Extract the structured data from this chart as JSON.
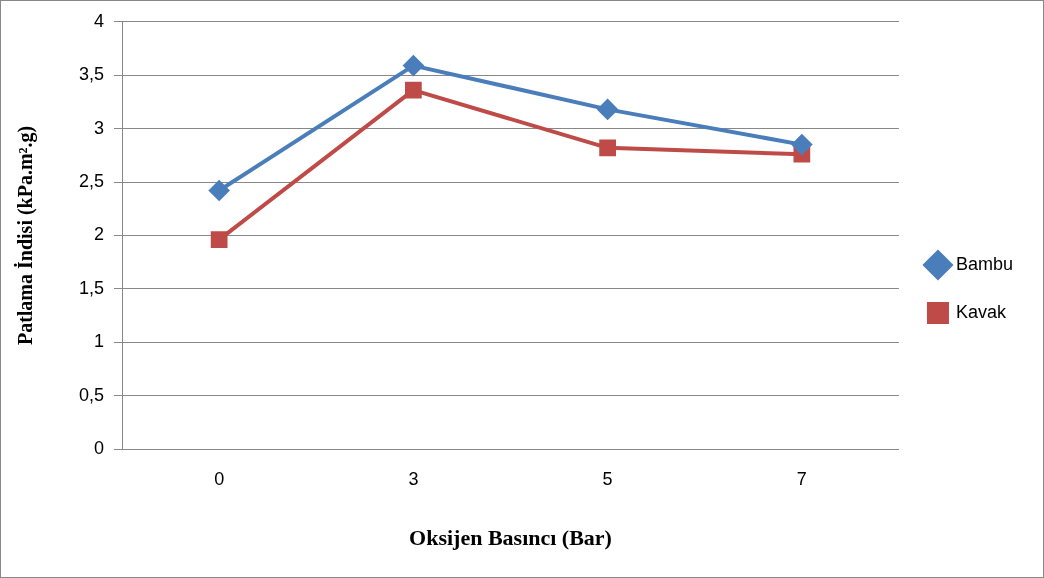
{
  "chart_data": {
    "type": "line",
    "xlabel": "Oksijen Basıncı (Bar)",
    "ylabel": "Patlama İndisi (kPa.m².g)",
    "categories": [
      "0",
      "3",
      "5",
      "7"
    ],
    "series": [
      {
        "name": "Bambu",
        "color": "#4a7ebb",
        "marker": "diamond",
        "values": [
          2.42,
          3.59,
          3.18,
          2.85
        ]
      },
      {
        "name": "Kavak",
        "color": "#be4b48",
        "marker": "square",
        "values": [
          1.96,
          3.36,
          2.82,
          2.76
        ]
      }
    ],
    "ylim": [
      0,
      4
    ],
    "yticks": [
      0,
      {
        "value": 0.5,
        "label": "0,5"
      },
      1,
      {
        "value": 1.5,
        "label": "1,5"
      },
      2,
      {
        "value": 2.5,
        "label": "2,5"
      },
      3,
      {
        "value": 3.5,
        "label": "3,5"
      },
      4
    ],
    "grid": "y",
    "legend": "right",
    "line_style": "solid"
  }
}
